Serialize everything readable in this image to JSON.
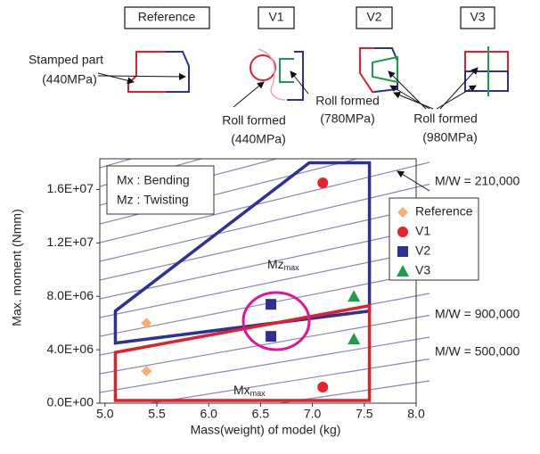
{
  "diagrams": {
    "panels": [
      "Reference",
      "V1",
      "V2",
      "V3"
    ],
    "callouts": [
      [
        "Stamped part",
        "(440MPa)"
      ],
      [
        "Roll formed",
        "(440MPa)"
      ],
      [
        "Roll formed",
        "(780MPa)"
      ],
      [
        "Roll formed",
        "(980MPa)"
      ]
    ]
  },
  "chart_data": {
    "type": "scatter",
    "xlabel": "Mass(weight) of model    (kg)",
    "ylabel": "Max. moment   (Nmm)",
    "notes": [
      "Mx : Bending",
      "Mz : Twisting"
    ],
    "annotations": [
      "M/W = 210,000",
      "M/W = 900,000",
      "M/W = 500,000"
    ],
    "xlim": [
      4.95,
      8.0
    ],
    "xticks": [
      {
        "value": 5,
        "label": "5.0"
      },
      {
        "value": 5.5,
        "label": "5.5"
      },
      {
        "value": 6,
        "label": "6.0"
      },
      {
        "value": 6.5,
        "label": "6.5"
      },
      {
        "value": 7,
        "label": "7.0"
      },
      {
        "value": 7.5,
        "label": "7.5"
      },
      {
        "value": 8,
        "label": "8.0"
      }
    ],
    "ylim": [
      0,
      18300000
    ],
    "yticks": [
      {
        "value": 0,
        "label": "0.0E+00"
      },
      {
        "value": 4000000,
        "label": "4.0E+06"
      },
      {
        "value": 8000000,
        "label": "8.0E+06"
      },
      {
        "value": 12000000,
        "label": "1.2E+07"
      },
      {
        "value": 16000000,
        "label": "1.6E+07"
      }
    ],
    "regions": [
      {
        "label": "Mz",
        "label_sub": "max",
        "color": "#2e3192",
        "x": [
          5.1,
          6.97,
          7.55,
          7.55,
          5.1
        ],
        "y": [
          6900000,
          18000000,
          18000000,
          6900000,
          4500000
        ]
      },
      {
        "label": "Mx",
        "label_sub": "max",
        "color": "#e0202a",
        "x": [
          5.1,
          7.55,
          7.55,
          5.1
        ],
        "y": [
          3800000,
          7300000,
          200000,
          200000
        ]
      }
    ],
    "series": [
      {
        "name": "Reference",
        "color": "#f5b070",
        "marker": "diamond",
        "x": [
          5.4,
          5.4
        ],
        "values": [
          6000000,
          2400000
        ]
      },
      {
        "name": "V1",
        "color": "#e8212b",
        "marker": "circle",
        "x": [
          7.1,
          7.1
        ],
        "values": [
          16500000,
          1200000
        ]
      },
      {
        "name": "V2",
        "color": "#2e3192",
        "marker": "square",
        "x": [
          6.6,
          6.6
        ],
        "values": [
          7400000,
          5000000
        ]
      },
      {
        "name": "V3",
        "color": "#1a9e4a",
        "marker": "triangle",
        "x": [
          7.4,
          7.4
        ],
        "values": [
          8000000,
          4800000
        ]
      }
    ]
  }
}
